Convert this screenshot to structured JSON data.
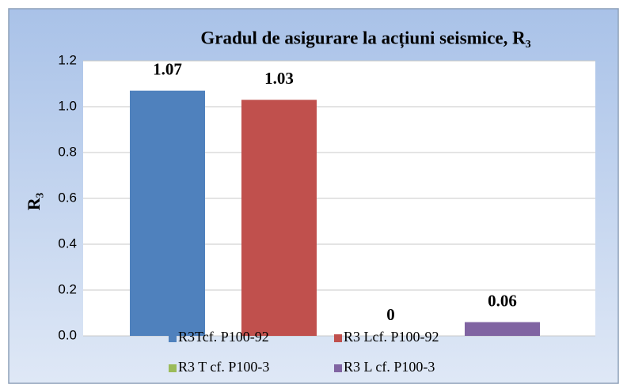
{
  "chart_data": {
    "type": "bar",
    "title": "Gradul de asigurare la acțiuni seismice, R₃",
    "y_label": "R₃",
    "categories": [
      null
    ],
    "series": [
      {
        "name": "R3Tcf. P100-92",
        "color": "#4f81bd",
        "values": [
          1.07
        ]
      },
      {
        "name": "R3 Lcf. P100-92",
        "color": "#c0504d",
        "values": [
          1.03
        ]
      },
      {
        "name": "R3 T cf. P100-3",
        "color": "#9bbb59",
        "values": [
          0
        ]
      },
      {
        "name": "R3 L cf. P100-3",
        "color": "#8064a2",
        "values": [
          0.06
        ]
      }
    ],
    "ylim": [
      0,
      1.2
    ],
    "yticks": [
      {
        "value": 0,
        "label": "0.0"
      },
      0.2,
      0.4,
      0.6,
      0.8,
      {
        "value": 1,
        "label": "1.0"
      },
      1.2
    ],
    "grid": true,
    "legend": "bottom"
  }
}
